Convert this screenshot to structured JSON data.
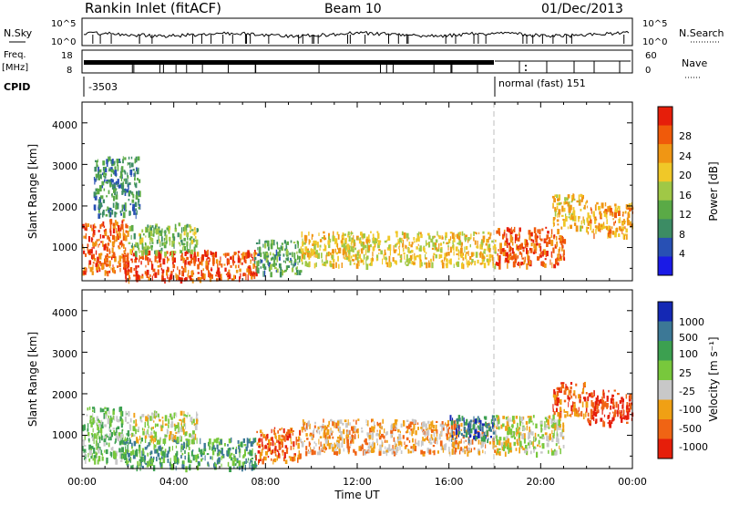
{
  "header": {
    "radar": "Rankin Inlet (fitACF)",
    "beam": "Beam 10",
    "date": "01/Dec/2013"
  },
  "status_panels": {
    "nsky_label": "N.Sky",
    "nsearch_label": "N.Search",
    "nsky_ticks": [
      "10^5",
      "10^0"
    ],
    "nsearch_ticks": [
      "10^5",
      "10^0"
    ],
    "freq_label_1": "Freq.",
    "freq_label_2": "[MHz]",
    "freq_ticks": [
      "18",
      "8"
    ],
    "nave_label": "Nave",
    "nave_ticks": [
      "60",
      "0"
    ],
    "cpid_label": "CPID",
    "cpid_first": "-3503",
    "cpid_second": "normal (fast) 151"
  },
  "chart_data": [
    {
      "type": "heatmap",
      "name": "power",
      "ylabel": "Slant Range [km]",
      "y_ticks": [
        "1000",
        "2000",
        "3000",
        "4000"
      ],
      "ylim": [
        200,
        4500
      ],
      "xlim": [
        0,
        24
      ],
      "colorbar_label": "Power [dB]",
      "colorbar_ticks": [
        "4",
        "8",
        "12",
        "16",
        "20",
        "24",
        "28"
      ],
      "colorbar_colors": [
        "#1a1ae6",
        "#2850b4",
        "#3c8c64",
        "#5aaa46",
        "#a0c846",
        "#f0c828",
        "#f09614",
        "#f05a0a",
        "#e61e0a"
      ],
      "clusters": [
        {
          "t": [
            0.0,
            2.0
          ],
          "r": [
            400,
            1700
          ],
          "level": 26
        },
        {
          "t": [
            1.8,
            7.6
          ],
          "r": [
            250,
            950
          ],
          "level": 27
        },
        {
          "t": [
            2.0,
            5.0
          ],
          "r": [
            900,
            1600
          ],
          "level": 13
        },
        {
          "t": [
            7.5,
            9.5
          ],
          "r": [
            400,
            1200
          ],
          "level": 10
        },
        {
          "t": [
            9.5,
            18.0
          ],
          "r": [
            600,
            1400
          ],
          "level": 19
        },
        {
          "t": [
            18.0,
            21.0
          ],
          "r": [
            600,
            1500
          ],
          "level": 26
        },
        {
          "t": [
            20.5,
            22.0
          ],
          "r": [
            1500,
            2300
          ],
          "level": 19
        },
        {
          "t": [
            22.0,
            24.0
          ],
          "r": [
            1300,
            2100
          ],
          "level": 22
        },
        {
          "t": [
            0.5,
            2.5
          ],
          "r": [
            1800,
            3200
          ],
          "level": 8
        }
      ]
    },
    {
      "type": "heatmap",
      "name": "velocity",
      "xlabel": "Time UT",
      "ylabel": "Slant Range [km]",
      "x_ticks": [
        "00:00",
        "04:00",
        "08:00",
        "12:00",
        "16:00",
        "20:00",
        "00:00"
      ],
      "y_ticks": [
        "1000",
        "2000",
        "3000",
        "4000"
      ],
      "ylim": [
        200,
        4500
      ],
      "xlim": [
        0,
        24
      ],
      "colorbar_label": "Velocity [m s⁻¹]",
      "colorbar_ticks": [
        "1000",
        "500",
        "100",
        "25",
        "-25",
        "-100",
        "-500",
        "-1000"
      ],
      "colorbar_colors": [
        "#1428b4",
        "#3c7896",
        "#3ca050",
        "#78c83c",
        "#c8c8c8",
        "#f0a014",
        "#f06414",
        "#e61e0a"
      ],
      "clusters": [
        {
          "t": [
            0.0,
            2.0
          ],
          "r": [
            400,
            1700
          ],
          "level": 3
        },
        {
          "t": [
            1.8,
            7.6
          ],
          "r": [
            250,
            950
          ],
          "level": 2
        },
        {
          "t": [
            2.0,
            5.0
          ],
          "r": [
            900,
            1600
          ],
          "level": 4
        },
        {
          "t": [
            7.5,
            9.5
          ],
          "r": [
            400,
            1200
          ],
          "level": 6
        },
        {
          "t": [
            9.5,
            18.0
          ],
          "r": [
            600,
            1400
          ],
          "level": 5
        },
        {
          "t": [
            16.0,
            18.0
          ],
          "r": [
            900,
            1500
          ],
          "level": 1
        },
        {
          "t": [
            18.0,
            21.0
          ],
          "r": [
            600,
            1500
          ],
          "level": 4
        },
        {
          "t": [
            20.5,
            22.0
          ],
          "r": [
            1500,
            2300
          ],
          "level": 6
        },
        {
          "t": [
            22.0,
            24.0
          ],
          "r": [
            1300,
            2100
          ],
          "level": 7
        }
      ]
    }
  ]
}
